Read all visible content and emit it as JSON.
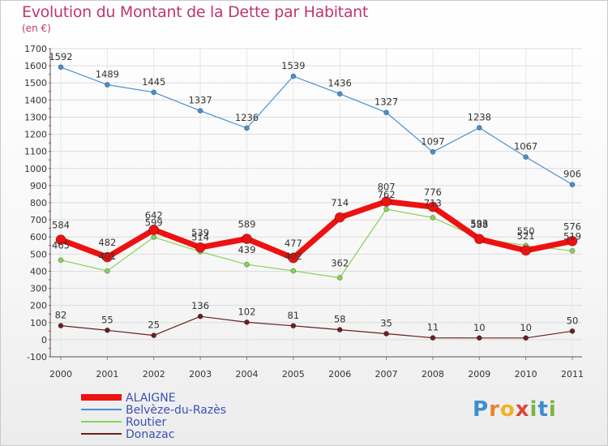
{
  "chart_data": {
    "type": "line",
    "title": "Evolution du Montant de la Dette par Habitant",
    "subtitle": "(en €)",
    "categories": [
      "2000",
      "2001",
      "2002",
      "2003",
      "2004",
      "2005",
      "2006",
      "2007",
      "2008",
      "2009",
      "2010",
      "2011"
    ],
    "ylim": [
      -100,
      1700
    ],
    "yticks": [
      -100,
      0,
      100,
      200,
      300,
      400,
      500,
      600,
      700,
      800,
      900,
      1000,
      1100,
      1200,
      1300,
      1400,
      1500,
      1600,
      1700
    ],
    "grid": true,
    "legend_position": "bottom-left",
    "series": [
      {
        "name": "ALAIGNE",
        "color": "#ee1111",
        "values": [
          584,
          482,
          642,
          539,
          589,
          477,
          714,
          807,
          776,
          588,
          521,
          576
        ]
      },
      {
        "name": "Belvèze-du-Razès",
        "color": "#4a8fcf",
        "values": [
          1592,
          1489,
          1445,
          1337,
          1236,
          1539,
          1436,
          1327,
          1097,
          1238,
          1067,
          906
        ]
      },
      {
        "name": "Routier",
        "color": "#88d25a",
        "values": [
          465,
          401,
          599,
          514,
          439,
          402,
          362,
          762,
          713,
          593,
          550,
          519
        ]
      },
      {
        "name": "Donazac",
        "color": "#6b1f1f",
        "values": [
          82,
          55,
          25,
          136,
          102,
          81,
          58,
          35,
          11,
          10,
          10,
          50
        ]
      }
    ]
  },
  "brand": {
    "p": "P",
    "r": "r",
    "o": "o",
    "x": "x",
    "i": "i",
    "t": "t",
    "i2": "i"
  }
}
